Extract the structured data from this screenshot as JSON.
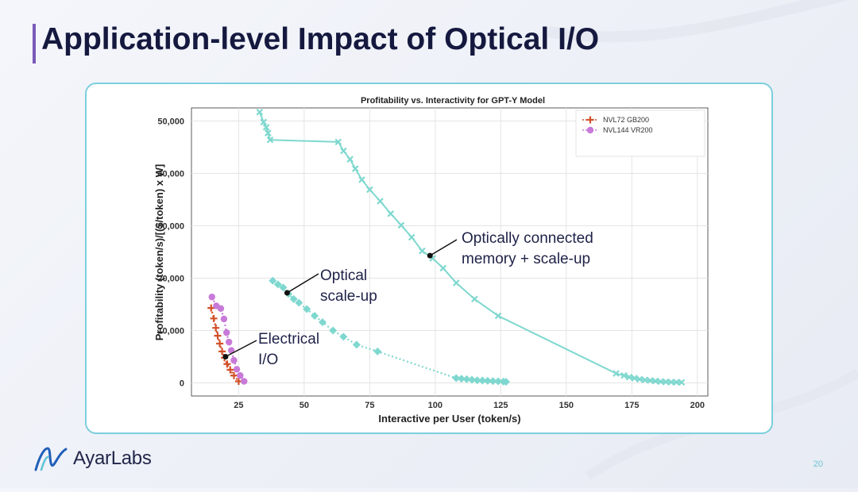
{
  "slide": {
    "title": "Application-level Impact of Optical I/O",
    "page_number": "20",
    "logo_text": "AyarLabs",
    "accent_color": "#7a5ab8",
    "card_border_color": "#7ccfdc"
  },
  "chart_data": {
    "type": "line",
    "title": "Profitability vs. Interactivity for GPT-Y Model",
    "xlabel": "Interactive per User (token/s)",
    "ylabel": "Profitability (token/s)/[($/token) x W]",
    "xlim": [
      7,
      204
    ],
    "ylim": [
      -2500,
      52500
    ],
    "xticks": [
      25,
      50,
      75,
      100,
      125,
      150,
      175,
      200
    ],
    "yticks": [
      0,
      10000,
      20000,
      30000,
      40000,
      50000
    ],
    "xtick_labels": [
      "25",
      "50",
      "75",
      "100",
      "125",
      "150",
      "175",
      "200"
    ],
    "ytick_labels": [
      "0",
      "10,000",
      "20,000",
      "30,000",
      "40,000",
      "50,000"
    ],
    "grid": true,
    "legend_position": "top-right",
    "series": [
      {
        "name": "NVL72 GB200",
        "color": "#d2502a",
        "marker": "plus",
        "style": "dotted",
        "x": [
          14.5,
          15.5,
          16.3,
          17.0,
          17.8,
          18.7,
          19.6,
          20.6,
          21.8,
          23.2,
          25.0
        ],
        "y": [
          14300,
          12300,
          10500,
          9000,
          7500,
          6000,
          4800,
          3600,
          2500,
          1400,
          300
        ]
      },
      {
        "name": "NVL144 VR200",
        "color": "#c87ad8",
        "marker": "circle",
        "style": "dotted",
        "x": [
          14.8,
          16.5,
          18.2,
          19.4,
          20.4,
          21.3,
          22.2,
          23.2,
          24.3,
          25.6,
          27.1
        ],
        "y": [
          16400,
          14700,
          14200,
          12200,
          9600,
          7800,
          6200,
          4300,
          2600,
          1400,
          300
        ]
      },
      {
        "name": "",
        "color": "#7fd8cf",
        "marker": "diamond",
        "style": "dotted",
        "x": [
          38,
          40,
          42,
          44,
          46,
          48,
          51,
          54,
          57,
          61,
          65,
          70,
          78,
          108,
          110,
          112,
          114,
          116,
          118,
          120,
          122,
          124,
          126,
          127
        ],
        "y": [
          19500,
          18800,
          18200,
          17000,
          16000,
          15300,
          14100,
          12800,
          11600,
          10000,
          8800,
          7300,
          6000,
          900,
          800,
          700,
          600,
          500,
          450,
          400,
          350,
          300,
          250,
          200
        ]
      },
      {
        "name": "",
        "color": "#7fd8cf",
        "marker": "x",
        "style": "solid",
        "x": [
          33,
          34.5,
          35.5,
          36.2,
          37,
          63,
          65,
          67.5,
          69.5,
          72,
          75,
          79,
          83,
          87,
          91,
          95,
          99,
          103,
          108,
          115,
          124,
          169,
          172,
          174,
          176,
          178,
          180,
          182,
          184,
          186,
          188,
          190,
          192,
          194
        ],
        "y": [
          51700,
          49800,
          48800,
          47700,
          46400,
          46000,
          44300,
          42700,
          40900,
          38800,
          36900,
          34700,
          32300,
          30100,
          27800,
          25200,
          23800,
          21900,
          19100,
          16000,
          12800,
          1800,
          1400,
          1100,
          900,
          700,
          550,
          450,
          350,
          250,
          200,
          150,
          120,
          100
        ]
      }
    ],
    "annotations": [
      {
        "text": "Optically connected\nmemory + scale-up",
        "point": [
          98,
          24300
        ]
      },
      {
        "text": "Optical\nscale-up",
        "point": [
          43.5,
          17200
        ]
      },
      {
        "text": "Electrical\nI/O",
        "point": [
          20,
          5000
        ]
      }
    ]
  }
}
